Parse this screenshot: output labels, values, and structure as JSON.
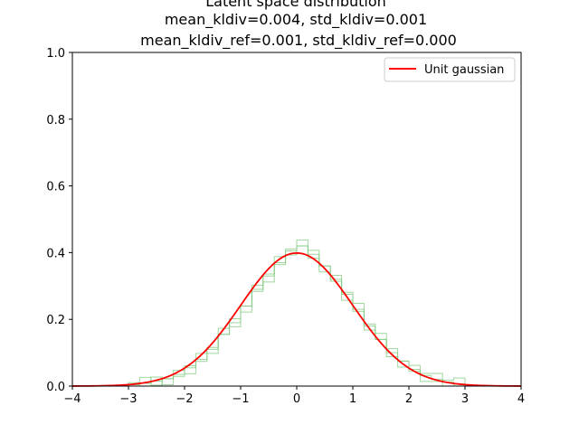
{
  "chart_data": {
    "type": "line",
    "title_lines": [
      "Latent space distribution",
      "mean_kldiv=0.004, std_kldiv=0.001",
      "mean_kldiv_ref=0.001, std_kldiv_ref=0.000"
    ],
    "xlim": [
      -4,
      4
    ],
    "ylim": [
      0,
      1.0
    ],
    "x_ticks": [
      "−4",
      "−3",
      "−2",
      "−1",
      "0",
      "1",
      "2",
      "3",
      "4"
    ],
    "y_ticks": [
      "0.0",
      "0.2",
      "0.4",
      "0.6",
      "0.8",
      "1.0"
    ],
    "legend_position": "top-right",
    "grid": false,
    "series": [
      {
        "name": "Unit gaussian",
        "style": "line",
        "color": "#ff0000",
        "mu": 0,
        "sigma": 1
      },
      {
        "style": "step-histogram",
        "color": "#7fc97f",
        "count": 3,
        "x": [
          -3.0,
          -2.8,
          -2.6,
          -2.4,
          -2.2,
          -2.0,
          -1.8,
          -1.6,
          -1.4,
          -1.2,
          -1.0,
          -0.8,
          -0.6,
          -0.4,
          -0.2,
          0.0,
          0.2,
          0.4,
          0.6,
          0.8,
          1.0,
          1.2,
          1.4,
          1.6,
          1.8,
          2.0,
          2.2,
          2.4,
          2.6,
          2.8
        ],
        "values": [
          0.004,
          0.008,
          0.015,
          0.022,
          0.035,
          0.055,
          0.08,
          0.11,
          0.155,
          0.19,
          0.24,
          0.29,
          0.33,
          0.37,
          0.405,
          0.42,
          0.395,
          0.36,
          0.32,
          0.275,
          0.23,
          0.18,
          0.14,
          0.1,
          0.075,
          0.05,
          0.032,
          0.02,
          0.012,
          0.006
        ]
      }
    ]
  }
}
